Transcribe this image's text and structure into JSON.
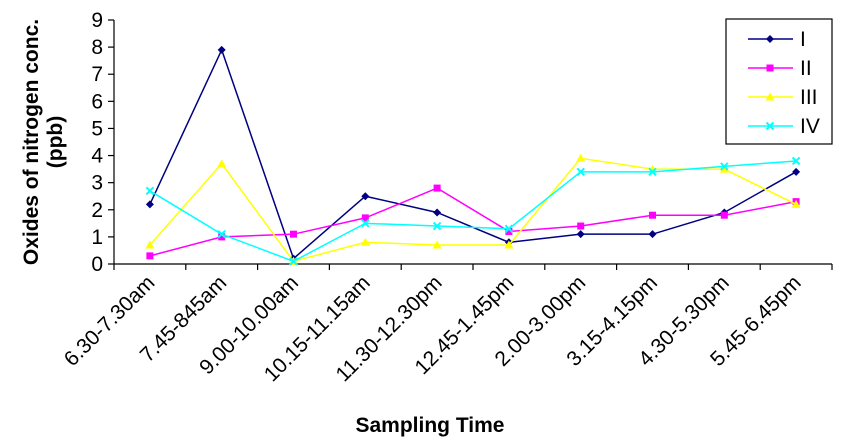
{
  "chart_data": {
    "type": "line",
    "xlabel": "Sampling Time",
    "ylabel": "Oxides of nitrogen conc. (ppb)",
    "ylabel_lines": [
      "Oxides of nitrogen conc.",
      "(ppb)"
    ],
    "ylim": [
      0,
      9
    ],
    "yticks": [
      "0",
      "1",
      "2",
      "3",
      "4",
      "5",
      "6",
      "7",
      "8",
      "9"
    ],
    "categories": [
      "6.30-7.30am",
      "7.45-845am",
      "9.00-10.00am",
      "10.15-11.15am",
      "11.30-12.30pm",
      "12.45-1.45pm",
      "2.00-3.00pm",
      "3.15-4.15pm",
      "4.30-5.30pm",
      "5.45-6.45pm"
    ],
    "grid": false,
    "legend_position": "top-right",
    "series": [
      {
        "name": "I",
        "color": "#000080",
        "marker": "diamond",
        "values": [
          2.2,
          7.9,
          0.2,
          2.5,
          1.9,
          0.8,
          1.1,
          1.1,
          1.9,
          3.4
        ]
      },
      {
        "name": "II",
        "color": "#FF00FF",
        "marker": "square",
        "values": [
          0.3,
          1.0,
          1.1,
          1.7,
          2.8,
          1.2,
          1.4,
          1.8,
          1.8,
          2.3
        ]
      },
      {
        "name": "III",
        "color": "#FFFF00",
        "marker": "triangle",
        "values": [
          0.7,
          3.7,
          0.1,
          0.8,
          0.7,
          0.7,
          3.9,
          3.5,
          3.5,
          2.2
        ]
      },
      {
        "name": "IV",
        "color": "#00FFFF",
        "marker": "x",
        "values": [
          2.7,
          1.1,
          0.1,
          1.5,
          1.4,
          1.3,
          3.4,
          3.4,
          3.6,
          3.8
        ]
      }
    ]
  }
}
